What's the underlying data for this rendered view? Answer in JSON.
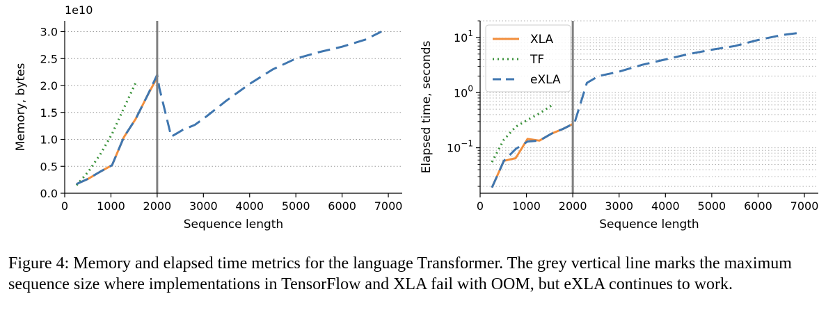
{
  "chart_data": [
    {
      "type": "line",
      "id": "memory",
      "xlabel": "Sequence length",
      "ylabel": "Memory, bytes",
      "y_offset_label": "1e10",
      "yscale": "linear",
      "xlim": [
        0,
        7300
      ],
      "ylim": [
        0,
        3.2
      ],
      "x_ticks": [
        0,
        1000,
        2000,
        3000,
        4000,
        5000,
        6000,
        7000
      ],
      "y_ticks": [
        0.0,
        0.5,
        1.0,
        1.5,
        2.0,
        2.5,
        3.0
      ],
      "y_tick_labels": [
        "0.0",
        "0.5",
        "1.0",
        "1.5",
        "2.0",
        "2.5",
        "3.0"
      ],
      "vline_x": 2000,
      "grid": "horizontal dotted",
      "series": [
        {
          "name": "XLA",
          "style": "solid",
          "color": "#f28e3c",
          "x": [
            256,
            512,
            768,
            1024,
            1280,
            1536,
            1792,
            2000
          ],
          "y": [
            0.17,
            0.27,
            0.4,
            0.52,
            1.04,
            1.38,
            1.82,
            2.15
          ]
        },
        {
          "name": "TF",
          "style": "dotted",
          "color": "#3a923a",
          "x": [
            256,
            512,
            768,
            1024,
            1280,
            1536
          ],
          "y": [
            0.15,
            0.4,
            0.72,
            1.1,
            1.58,
            2.05
          ]
        },
        {
          "name": "eXLA",
          "style": "dashed",
          "color": "#3f76af",
          "x": [
            256,
            512,
            768,
            1024,
            1280,
            1536,
            1792,
            2000,
            2048,
            2304,
            2560,
            2816,
            3072,
            3500,
            4000,
            4500,
            5000,
            5500,
            6000,
            6500,
            6850
          ],
          "y": [
            0.17,
            0.27,
            0.4,
            0.52,
            1.04,
            1.38,
            1.82,
            2.2,
            1.95,
            1.05,
            1.18,
            1.27,
            1.43,
            1.72,
            2.03,
            2.3,
            2.5,
            2.62,
            2.72,
            2.85,
            3.0
          ]
        }
      ]
    },
    {
      "type": "line",
      "id": "elapsed",
      "xlabel": "Sequence length",
      "ylabel": "Elapsed time, seconds",
      "yscale": "log",
      "xlim": [
        0,
        7300
      ],
      "ylim": [
        0.015,
        20
      ],
      "x_ticks": [
        0,
        1000,
        2000,
        3000,
        4000,
        5000,
        6000,
        7000
      ],
      "y_major_ticks": [
        0.1,
        1,
        10
      ],
      "vline_x": 2000,
      "grid": "horizontal dotted (minor)",
      "legend": [
        "XLA",
        "TF",
        "eXLA"
      ],
      "legend_position": "top-left",
      "series": [
        {
          "name": "XLA",
          "style": "solid",
          "color": "#f28e3c",
          "x": [
            256,
            512,
            768,
            1024,
            1280,
            1536,
            1792,
            2000
          ],
          "y": [
            0.019,
            0.058,
            0.065,
            0.145,
            0.135,
            0.18,
            0.22,
            0.27
          ]
        },
        {
          "name": "TF",
          "style": "dotted",
          "color": "#3a923a",
          "x": [
            256,
            512,
            768,
            1024,
            1280,
            1536
          ],
          "y": [
            0.055,
            0.14,
            0.24,
            0.32,
            0.42,
            0.58
          ]
        },
        {
          "name": "eXLA",
          "style": "dashed",
          "color": "#3f76af",
          "x": [
            256,
            512,
            768,
            1024,
            1280,
            1536,
            1792,
            2000,
            2048,
            2304,
            2560,
            3000,
            3500,
            4000,
            4500,
            5000,
            5500,
            6000,
            6500,
            6850
          ],
          "y": [
            0.019,
            0.058,
            0.095,
            0.13,
            0.135,
            0.18,
            0.22,
            0.27,
            0.3,
            1.5,
            2.0,
            2.4,
            3.2,
            4.0,
            5.0,
            6.0,
            7.0,
            9.0,
            11.0,
            12.0
          ]
        }
      ]
    }
  ],
  "caption": "Figure 4: Memory and elapsed time metrics for the language Transformer. The grey vertical line marks the maximum sequence size where implementations in TensorFlow and XLA fail with OOM, but eXLA continues to work.",
  "colors": {
    "xla": "#f28e3c",
    "tf": "#3a923a",
    "exla": "#3f76af",
    "vline": "#808080"
  }
}
